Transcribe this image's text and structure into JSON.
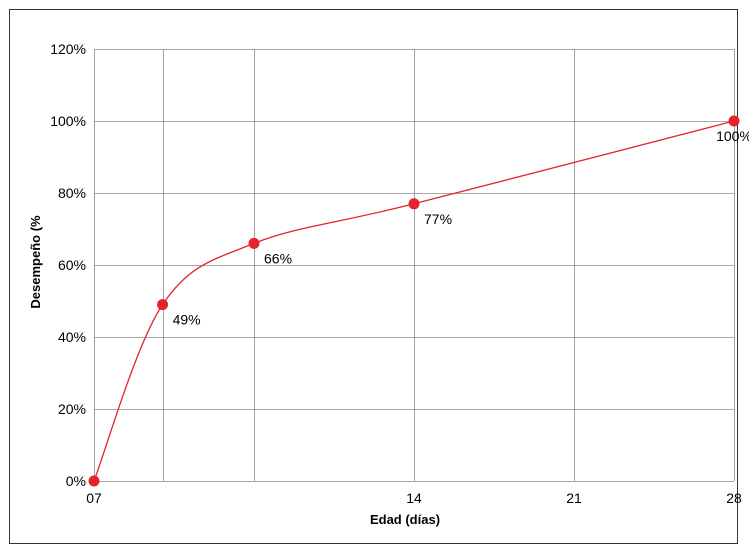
{
  "chart_data": {
    "type": "line",
    "title": "",
    "xlabel": "Edad (días)",
    "ylabel": "Desempeño (%",
    "x_ticks": [
      "07",
      "14",
      "21",
      "28"
    ],
    "y_ticks": [
      "0%",
      "20%",
      "40%",
      "60%",
      "80%",
      "100%",
      "120%"
    ],
    "xlim": [
      0,
      28
    ],
    "ylim": [
      0,
      120
    ],
    "grid": true,
    "legend": "none",
    "series": [
      {
        "x": [
          0,
          3,
          7,
          14,
          28
        ],
        "values": [
          0,
          49,
          66,
          77,
          100
        ],
        "labels": [
          "",
          "49%",
          "66%",
          "77%",
          "100%"
        ]
      }
    ],
    "colors": {
      "line": "#e3242b",
      "marker": "#e3242b",
      "grid": "#8c8c8c",
      "border": "#333333"
    }
  }
}
